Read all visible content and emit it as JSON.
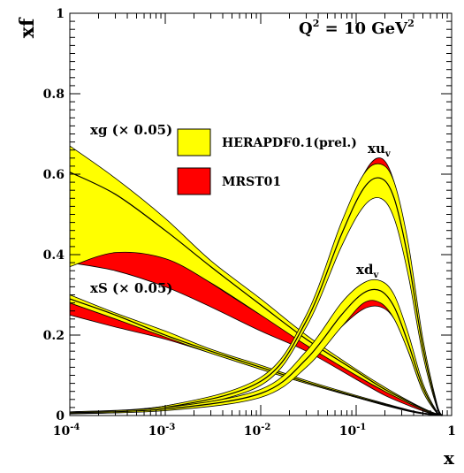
{
  "chart_data": {
    "type": "area",
    "xscale": "log",
    "xlim": [
      0.0001,
      1
    ],
    "ylim": [
      0,
      1
    ],
    "xlabel": "x",
    "ylabel": "xf",
    "title": "Q2 = 10 GeV2",
    "title_parts": {
      "q": "Q",
      "q_sup": "2",
      "eq": " = 10 GeV",
      "gev_sup": "2"
    },
    "xticks": [
      {
        "value": 0.0001,
        "base": "10",
        "exp": "-4"
      },
      {
        "value": 0.001,
        "base": "10",
        "exp": "-3"
      },
      {
        "value": 0.01,
        "base": "10",
        "exp": "-2"
      },
      {
        "value": 0.1,
        "base": "10",
        "exp": "-1"
      },
      {
        "value": 1,
        "base": "1",
        "exp": ""
      }
    ],
    "yticks": [
      {
        "value": 0,
        "label": "0"
      },
      {
        "value": 0.2,
        "label": "0.2"
      },
      {
        "value": 0.4,
        "label": "0.4"
      },
      {
        "value": 0.6,
        "label": "0.6"
      },
      {
        "value": 0.8,
        "label": "0.8"
      },
      {
        "value": 1,
        "label": "1"
      }
    ],
    "legend": {
      "placement": "upper-center",
      "entries": [
        {
          "label": "HERAPDF0.1(prel.)",
          "color": "#ffff00"
        },
        {
          "label": "MRST01",
          "color": "#ff0000"
        }
      ]
    },
    "curve_labels": [
      {
        "id": "xg",
        "text": "xg (× 0.05)"
      },
      {
        "id": "xS",
        "text": "xS (× 0.05)"
      },
      {
        "id": "xuv",
        "base": "xu",
        "sub": "v"
      },
      {
        "id": "xdv",
        "base": "xd",
        "sub": "v"
      }
    ],
    "series": [
      {
        "name": "MRST01",
        "pdf": "xg (× 0.05)",
        "color": "#ff0000",
        "x": [
          0.0001,
          0.0003,
          0.001,
          0.003,
          0.01,
          0.03,
          0.1,
          0.2,
          0.4,
          0.6,
          0.8
        ],
        "lower": [
          0.38,
          0.36,
          0.32,
          0.27,
          0.21,
          0.16,
          0.09,
          0.05,
          0.02,
          0.005,
          0.0
        ],
        "upper": [
          0.59,
          0.5,
          0.41,
          0.33,
          0.25,
          0.18,
          0.1,
          0.06,
          0.025,
          0.008,
          0.0
        ]
      },
      {
        "name": "HERAPDF0.1(prel.)",
        "pdf": "xg (× 0.05)",
        "color": "#ffff00",
        "x": [
          0.0001,
          0.0003,
          0.001,
          0.003,
          0.01,
          0.03,
          0.1,
          0.2,
          0.4,
          0.6,
          0.8
        ],
        "lower": [
          0.37,
          0.405,
          0.39,
          0.33,
          0.25,
          0.175,
          0.1,
          0.06,
          0.025,
          0.006,
          0.0
        ],
        "central": [
          0.605,
          0.55,
          0.46,
          0.37,
          0.275,
          0.19,
          0.11,
          0.065,
          0.028,
          0.008,
          0.0
        ],
        "upper": [
          0.67,
          0.59,
          0.49,
          0.385,
          0.29,
          0.2,
          0.115,
          0.07,
          0.03,
          0.01,
          0.0
        ]
      },
      {
        "name": "MRST01",
        "pdf": "xS (× 0.05)",
        "color": "#ff0000",
        "x": [
          0.0001,
          0.0003,
          0.001,
          0.003,
          0.01,
          0.03,
          0.1,
          0.2,
          0.4,
          0.6,
          0.8
        ],
        "lower": [
          0.25,
          0.22,
          0.19,
          0.155,
          0.115,
          0.08,
          0.045,
          0.025,
          0.008,
          0.002,
          0.0
        ],
        "upper": [
          0.28,
          0.24,
          0.2,
          0.16,
          0.12,
          0.085,
          0.048,
          0.028,
          0.01,
          0.003,
          0.0
        ]
      },
      {
        "name": "HERAPDF0.1(prel.)",
        "pdf": "xS (× 0.05)",
        "color": "#ffff00",
        "x": [
          0.0001,
          0.0003,
          0.001,
          0.003,
          0.01,
          0.03,
          0.1,
          0.2,
          0.4,
          0.6,
          0.8
        ],
        "lower": [
          0.28,
          0.24,
          0.195,
          0.155,
          0.115,
          0.08,
          0.045,
          0.026,
          0.009,
          0.002,
          0.0
        ],
        "central": [
          0.29,
          0.25,
          0.2,
          0.16,
          0.12,
          0.083,
          0.047,
          0.028,
          0.01,
          0.003,
          0.0
        ],
        "upper": [
          0.3,
          0.255,
          0.21,
          0.165,
          0.125,
          0.087,
          0.05,
          0.03,
          0.011,
          0.004,
          0.0
        ]
      },
      {
        "name": "MRST01",
        "pdf": "xuv",
        "color": "#ff0000",
        "x": [
          0.0001,
          0.001,
          0.01,
          0.03,
          0.07,
          0.12,
          0.18,
          0.25,
          0.35,
          0.5,
          0.7,
          0.8
        ],
        "lower": [
          0.005,
          0.018,
          0.08,
          0.23,
          0.45,
          0.58,
          0.62,
          0.56,
          0.4,
          0.17,
          0.02,
          0.0
        ],
        "upper": [
          0.009,
          0.024,
          0.09,
          0.24,
          0.46,
          0.6,
          0.64,
          0.58,
          0.42,
          0.18,
          0.025,
          0.0
        ]
      },
      {
        "name": "HERAPDF0.1(prel.)",
        "pdf": "xuv",
        "color": "#ffff00",
        "x": [
          0.0001,
          0.001,
          0.01,
          0.03,
          0.07,
          0.12,
          0.18,
          0.25,
          0.35,
          0.5,
          0.7,
          0.8
        ],
        "lower": [
          0.004,
          0.016,
          0.075,
          0.22,
          0.42,
          0.52,
          0.54,
          0.49,
          0.35,
          0.15,
          0.02,
          0.0
        ],
        "central": [
          0.006,
          0.02,
          0.085,
          0.235,
          0.45,
          0.565,
          0.59,
          0.54,
          0.39,
          0.17,
          0.025,
          0.0
        ],
        "upper": [
          0.008,
          0.024,
          0.095,
          0.25,
          0.48,
          0.6,
          0.625,
          0.58,
          0.43,
          0.19,
          0.03,
          0.0
        ]
      },
      {
        "name": "MRST01",
        "pdf": "xdv",
        "color": "#ff0000",
        "x": [
          0.0001,
          0.001,
          0.01,
          0.03,
          0.07,
          0.12,
          0.18,
          0.25,
          0.35,
          0.5,
          0.7,
          0.8
        ],
        "lower": [
          0.006,
          0.015,
          0.05,
          0.125,
          0.22,
          0.265,
          0.27,
          0.24,
          0.16,
          0.06,
          0.006,
          0.0
        ],
        "upper": [
          0.008,
          0.018,
          0.055,
          0.135,
          0.235,
          0.285,
          0.29,
          0.26,
          0.175,
          0.07,
          0.008,
          0.0
        ]
      },
      {
        "name": "HERAPDF0.1(prel.)",
        "pdf": "xdv",
        "color": "#ffff00",
        "x": [
          0.0001,
          0.001,
          0.01,
          0.03,
          0.07,
          0.12,
          0.18,
          0.25,
          0.35,
          0.5,
          0.7,
          0.8
        ],
        "lower": [
          0.005,
          0.012,
          0.045,
          0.12,
          0.22,
          0.28,
          0.28,
          0.24,
          0.16,
          0.06,
          0.006,
          0.0
        ],
        "central": [
          0.007,
          0.016,
          0.055,
          0.14,
          0.25,
          0.305,
          0.31,
          0.27,
          0.18,
          0.07,
          0.008,
          0.0
        ],
        "upper": [
          0.009,
          0.02,
          0.065,
          0.16,
          0.28,
          0.33,
          0.335,
          0.3,
          0.205,
          0.08,
          0.01,
          0.0
        ]
      }
    ]
  }
}
